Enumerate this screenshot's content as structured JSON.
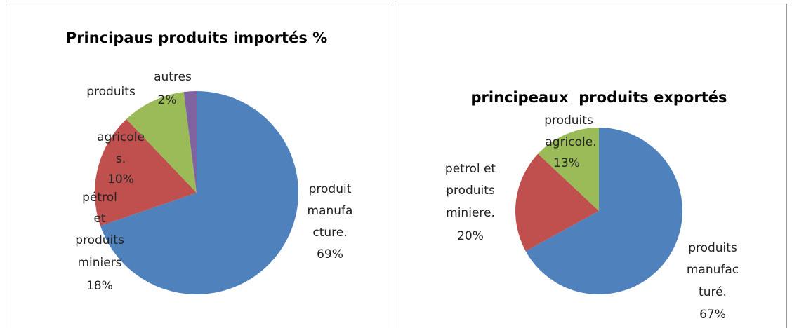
{
  "chart_data": [
    {
      "type": "pie",
      "title": "Principaus produits importés %",
      "categories": [
        "produit\nmanufa\ncture.",
        "pétrol\net\nproduits\nminiers",
        "produits\nagricole\ns.",
        "autres"
      ],
      "values": [
        69,
        18,
        10,
        2
      ],
      "value_labels": [
        "69%",
        "18%",
        "10%",
        "2%"
      ],
      "colors": [
        "#4f81bd",
        "#c0504d",
        "#9bbb59",
        "#8064a2"
      ]
    },
    {
      "type": "pie",
      "title": "principeaux  produits exportés",
      "categories": [
        "produits\nmanufac\nturé.",
        "petrol et\nproduits\nminiere.",
        "produits\nagricole."
      ],
      "values": [
        67,
        20,
        13
      ],
      "value_labels": [
        "67%",
        "20%",
        "13%"
      ],
      "colors": [
        "#4f81bd",
        "#c0504d",
        "#9bbb59"
      ]
    }
  ]
}
